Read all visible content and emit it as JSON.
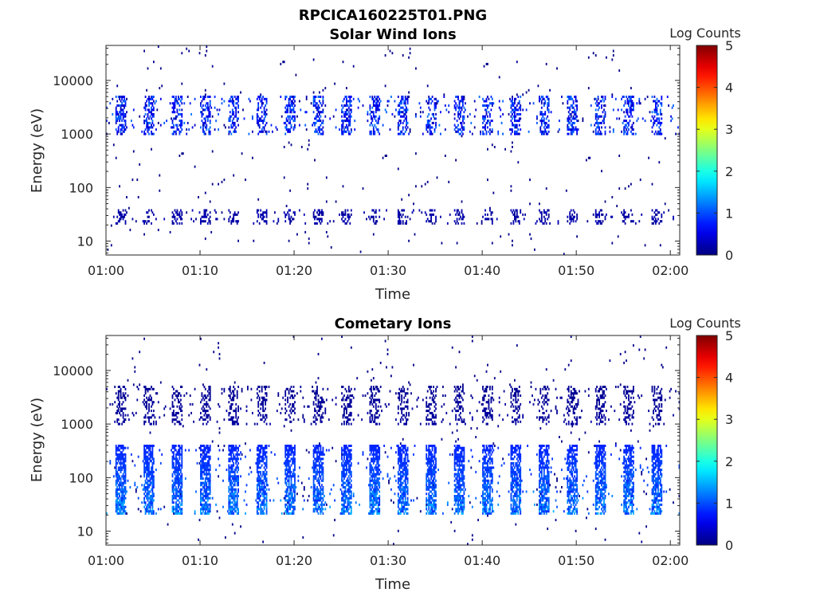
{
  "figure_title": "RPCICA160225T01.PNG",
  "chart_data": [
    {
      "type": "heatmap",
      "title": "Solar Wind Ions",
      "xlabel": "Time",
      "ylabel": "Energy (eV)",
      "y_scale": "log",
      "ylim": [
        5.5,
        45000
      ],
      "xlim": [
        "01:00",
        "02:01"
      ],
      "x_ticks": [
        "01:00",
        "01:10",
        "01:20",
        "01:30",
        "01:40",
        "01:50",
        "02:00"
      ],
      "y_ticks": [
        "10",
        "100",
        "1000",
        "10000"
      ],
      "colorbar": {
        "label": "Log Counts",
        "range": [
          0,
          5
        ],
        "ticks": [
          "0",
          "1",
          "2",
          "3",
          "4",
          "5"
        ]
      },
      "colormap": "jet",
      "sweep_period_min": 3.0,
      "sweep_start": "01:01",
      "populations": [
        {
          "energy_range_eV": [
            1000,
            5000
          ],
          "log_counts_typical": 0.2,
          "log_counts_max": 1.2
        },
        {
          "energy_range_eV": [
            20,
            40
          ],
          "log_counts_typical": 0.1,
          "log_counts_max": 0.3
        }
      ]
    },
    {
      "type": "heatmap",
      "title": "Cometary Ions",
      "xlabel": "Time",
      "ylabel": "Energy (eV)",
      "y_scale": "log",
      "ylim": [
        5.5,
        45000
      ],
      "xlim": [
        "01:00",
        "02:01"
      ],
      "x_ticks": [
        "01:00",
        "01:10",
        "01:20",
        "01:30",
        "01:40",
        "01:50",
        "02:00"
      ],
      "y_ticks": [
        "10",
        "100",
        "1000",
        "10000"
      ],
      "colorbar": {
        "label": "Log Counts",
        "range": [
          0,
          5
        ],
        "ticks": [
          "0",
          "1",
          "2",
          "3",
          "4",
          "5"
        ]
      },
      "colormap": "jet",
      "sweep_period_min": 3.0,
      "sweep_start": "01:01",
      "populations": [
        {
          "energy_range_eV": [
            20,
            400
          ],
          "log_counts_typical": 0.8,
          "log_counts_max": 1.6
        },
        {
          "energy_range_eV": [
            1000,
            5000
          ],
          "log_counts_typical": 0.1,
          "log_counts_max": 0.2
        }
      ]
    }
  ]
}
